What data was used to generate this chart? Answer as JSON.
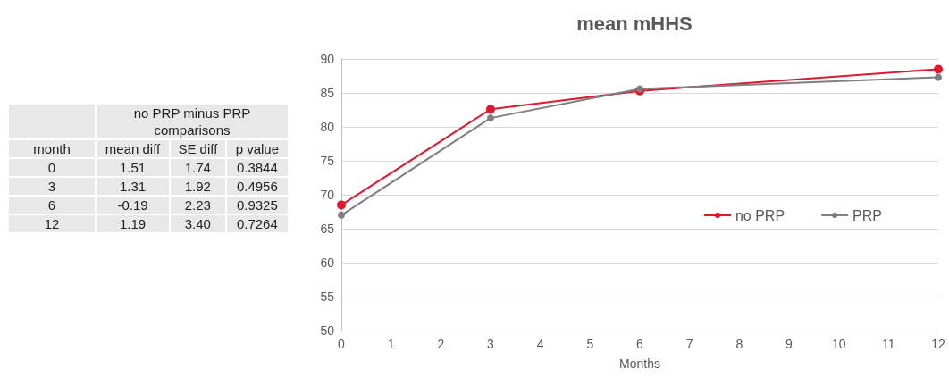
{
  "chart_data": [
    {
      "type": "other",
      "title": "no PRP minus PRP comparisons",
      "categories": [
        "month",
        "mean diff",
        "SE diff",
        "p value"
      ],
      "cell_labels": [
        [
          "0",
          "1.51",
          "1.74",
          "0.3844"
        ],
        [
          "3",
          "1.31",
          "1.92",
          "0.4956"
        ],
        [
          "6",
          "-0.19",
          "2.23",
          "0.9325"
        ],
        [
          "12",
          "1.19",
          "3.40",
          "0.7264"
        ]
      ]
    },
    {
      "type": "line",
      "title": "mean mHHS",
      "xlabel": "Months",
      "x": [
        0,
        3,
        6,
        12
      ],
      "series": [
        {
          "name": "no PRP",
          "color": "#e0182d",
          "values": [
            68.5,
            82.6,
            85.3,
            88.5
          ]
        },
        {
          "name": "PRP",
          "color": "#7f7f80",
          "values": [
            67.0,
            81.3,
            85.6,
            87.3
          ]
        }
      ],
      "xlim": [
        0,
        12
      ],
      "xticks": [
        0,
        1,
        2,
        3,
        4,
        5,
        6,
        7,
        8,
        9,
        10,
        11,
        12
      ],
      "ylim": [
        50,
        90
      ],
      "yticks": [
        50,
        55,
        60,
        65,
        70,
        75,
        80,
        85,
        90
      ],
      "grid": "y",
      "legend": "right",
      "marker": "circle",
      "line_style": "solid"
    }
  ]
}
